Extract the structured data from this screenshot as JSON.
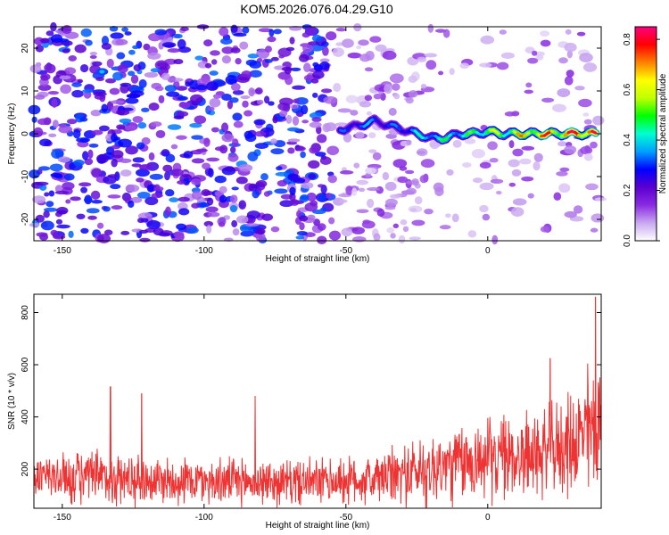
{
  "title": "KOM5.2026.076.04.29.G10",
  "chart_data": [
    {
      "type": "heatmap",
      "name": "spectrogram",
      "xlabel": "Height of straight line (km)",
      "ylabel": "Frequency (Hz)",
      "xlim": [
        -160,
        40
      ],
      "ylim": [
        -25,
        25
      ],
      "xticks": [
        -150,
        -100,
        -50,
        0
      ],
      "yticks": [
        -20,
        -10,
        0,
        10,
        20
      ],
      "colorbar": {
        "label": "Normalized spectral amplitude",
        "range": [
          0.0,
          0.85
        ],
        "ticks": [
          0.0,
          0.2,
          0.4,
          0.6,
          0.8
        ],
        "colormap": [
          "#ffffff",
          "#c9a8f0",
          "#8a2be2",
          "#5a00d0",
          "#0000ff",
          "#00a0ff",
          "#00ffd0",
          "#00ff00",
          "#c0ff00",
          "#ffff00",
          "#ff8000",
          "#ff0000",
          "#ff0080"
        ]
      },
      "ridge": {
        "x": [
          -52,
          -45,
          -40,
          -35,
          -30,
          -25,
          -20,
          -15,
          -10,
          -5,
          0,
          5,
          10,
          15,
          20,
          25,
          30,
          35,
          38
        ],
        "y": [
          1,
          2,
          3,
          2,
          1,
          0,
          -1,
          -1,
          0,
          0,
          0.5,
          0,
          0,
          0,
          0,
          0,
          0,
          0,
          0
        ],
        "amplitude": [
          0.3,
          0.35,
          0.35,
          0.3,
          0.35,
          0.4,
          0.45,
          0.45,
          0.45,
          0.5,
          0.6,
          0.55,
          0.65,
          0.7,
          0.75,
          0.7,
          0.8,
          0.85,
          0.8
        ]
      },
      "hotspot": {
        "x": -136,
        "y": 14.5,
        "amplitude": 0.35
      }
    },
    {
      "type": "line",
      "name": "snr",
      "xlabel": "Height of straight line (km)",
      "ylabel": "SNR (10 * v/v)",
      "xlim": [
        -160,
        40
      ],
      "ylim": [
        50,
        870
      ],
      "xticks": [
        -150,
        -100,
        -50,
        0
      ],
      "yticks": [
        200,
        400,
        600,
        800
      ],
      "color": "#ee3333",
      "envelope": {
        "x": [
          -160,
          -140,
          -120,
          -100,
          -80,
          -60,
          -40,
          -20,
          0,
          20,
          30,
          35,
          40
        ],
        "mean": [
          170,
          165,
          160,
          155,
          150,
          150,
          160,
          200,
          240,
          260,
          300,
          340,
          380
        ],
        "amplitude": [
          90,
          110,
          100,
          90,
          90,
          90,
          100,
          150,
          160,
          170,
          200,
          260,
          280
        ]
      },
      "peaks": [
        {
          "x": -133,
          "y": 515
        },
        {
          "x": -122,
          "y": 490
        },
        {
          "x": -82,
          "y": 480
        },
        {
          "x": 22,
          "y": 625
        },
        {
          "x": 38,
          "y": 860
        }
      ]
    }
  ]
}
